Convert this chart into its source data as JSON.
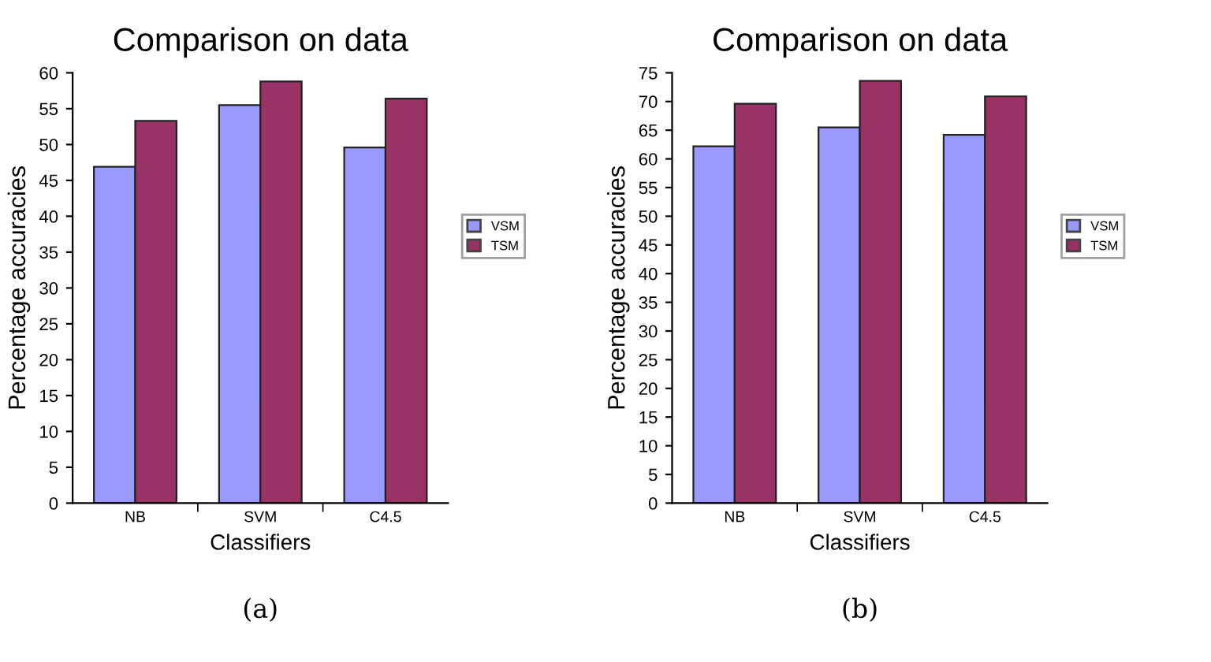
{
  "chart_data": [
    {
      "type": "bar",
      "title": "Comparison on data",
      "xlabel": "Classifiers",
      "ylabel": "Percentage accuracies",
      "categories": [
        "NB",
        "SVM",
        "C4.5"
      ],
      "series": [
        {
          "name": "VSM",
          "color": "#9999ff",
          "values": [
            46.9,
            55.5,
            49.6
          ]
        },
        {
          "name": "TSM",
          "color": "#993366",
          "values": [
            53.3,
            58.8,
            56.4
          ]
        }
      ],
      "ylim": [
        0,
        60
      ],
      "yticks": [
        0,
        5,
        10,
        15,
        20,
        25,
        30,
        35,
        40,
        45,
        50,
        55,
        60
      ],
      "grid": false,
      "legend": "right",
      "annotations": [
        "(a)"
      ]
    },
    {
      "type": "bar",
      "title": "Comparison on data",
      "xlabel": "Classifiers",
      "ylabel": "Percentage accuracies",
      "categories": [
        "NB",
        "SVM",
        "C4.5"
      ],
      "series": [
        {
          "name": "VSM",
          "color": "#9999ff",
          "values": [
            62.2,
            65.5,
            64.2
          ]
        },
        {
          "name": "TSM",
          "color": "#993366",
          "values": [
            69.6,
            73.6,
            70.9
          ]
        }
      ],
      "ylim": [
        0,
        75
      ],
      "yticks": [
        0,
        5,
        10,
        15,
        20,
        25,
        30,
        35,
        40,
        45,
        50,
        55,
        60,
        65,
        70,
        75
      ],
      "grid": false,
      "legend": "right",
      "annotations": [
        "(b)"
      ]
    }
  ]
}
